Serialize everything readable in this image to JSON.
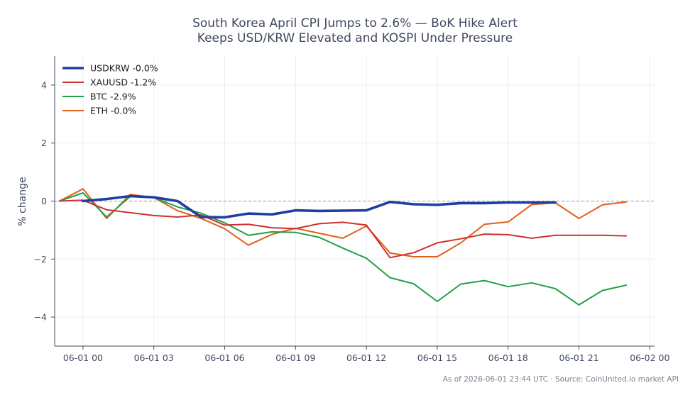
{
  "footer": "As of 2026-06-01 23:44 UTC · Source: CoinUnited.io market API",
  "colors": {
    "USDKRW": "#1f3fa0",
    "XAUUSD": "#d03030",
    "BTC": "#22a04a",
    "ETH": "#e0601a",
    "baseline": "#8a9bb0",
    "grid": "#e9edf2",
    "axis": "#3f4a5e"
  },
  "chart_data": {
    "type": "line",
    "title": [
      "South Korea April CPI Jumps to 2.6% — BoK Hike Alert",
      "Keeps USD/KRW Elevated and KOSPI Under Pressure"
    ],
    "xlabel": "",
    "ylabel": "% change",
    "x_unit": "hours since 06-01 00:00",
    "xlim": [
      -1.2,
      24.2
    ],
    "ylim": [
      -5,
      5
    ],
    "xticks": [
      {
        "x": 0,
        "label": "06-01 00"
      },
      {
        "x": 3,
        "label": "06-01 03"
      },
      {
        "x": 6,
        "label": "06-01 06"
      },
      {
        "x": 9,
        "label": "06-01 09"
      },
      {
        "x": 12,
        "label": "06-01 12"
      },
      {
        "x": 15,
        "label": "06-01 15"
      },
      {
        "x": 18,
        "label": "06-01 18"
      },
      {
        "x": 21,
        "label": "06-01 21"
      },
      {
        "x": 24,
        "label": "06-02 00"
      }
    ],
    "yticks": [
      {
        "y": 4,
        "label": "4"
      },
      {
        "y": 2,
        "label": "2"
      },
      {
        "y": 0,
        "label": "0"
      },
      {
        "y": -2,
        "label": "−2"
      },
      {
        "y": -4,
        "label": "−4"
      }
    ],
    "grid": true,
    "baseline": 0,
    "legend_position": "top-left",
    "series": [
      {
        "key": "USDKRW",
        "name": "USDKRW -0.0%",
        "x": [
          0,
          1,
          2,
          3,
          4,
          5,
          6,
          7,
          8,
          9,
          10,
          11,
          12,
          13,
          14,
          15,
          16,
          17,
          18,
          19,
          20
        ],
        "values": [
          0.0,
          0.07,
          0.17,
          0.13,
          0.0,
          -0.55,
          -0.56,
          -0.43,
          -0.46,
          -0.32,
          -0.34,
          -0.33,
          -0.32,
          -0.03,
          -0.11,
          -0.13,
          -0.07,
          -0.07,
          -0.05,
          -0.05,
          -0.05
        ]
      },
      {
        "key": "XAUUSD",
        "name": "XAUUSD -1.2%",
        "x": [
          -1,
          0,
          1,
          2,
          3,
          4,
          5,
          6,
          7,
          8,
          9,
          10,
          11,
          12,
          13,
          14,
          15,
          16,
          17,
          18,
          19,
          20,
          21,
          22,
          23
        ],
        "values": [
          0.0,
          0.03,
          -0.3,
          -0.4,
          -0.5,
          -0.55,
          -0.48,
          -0.83,
          -0.8,
          -0.92,
          -0.95,
          -0.78,
          -0.73,
          -0.83,
          -1.95,
          -1.78,
          -1.44,
          -1.3,
          -1.14,
          -1.16,
          -1.28,
          -1.18,
          -1.18,
          -1.18,
          -1.2
        ]
      },
      {
        "key": "BTC",
        "name": "BTC -2.9%",
        "x": [
          -1,
          0,
          1,
          2,
          3,
          4,
          5,
          6,
          7,
          8,
          9,
          10,
          11,
          12,
          13,
          14,
          15,
          16,
          17,
          18,
          19,
          20,
          21,
          22,
          23
        ],
        "values": [
          0.0,
          0.28,
          -0.55,
          0.16,
          0.12,
          -0.2,
          -0.42,
          -0.75,
          -1.18,
          -1.06,
          -1.08,
          -1.25,
          -1.62,
          -1.97,
          -2.64,
          -2.85,
          -3.46,
          -2.86,
          -2.74,
          -2.95,
          -2.82,
          -3.02,
          -3.58,
          -3.08,
          -2.9
        ]
      },
      {
        "key": "ETH",
        "name": "ETH -0.0%",
        "x": [
          -1,
          0,
          1,
          2,
          3,
          4,
          5,
          6,
          7,
          8,
          9,
          10,
          11,
          12,
          13,
          14,
          15,
          16,
          17,
          18,
          19,
          20,
          21,
          22,
          23
        ],
        "values": [
          0.0,
          0.42,
          -0.6,
          0.23,
          0.12,
          -0.33,
          -0.6,
          -0.95,
          -1.52,
          -1.15,
          -0.94,
          -1.11,
          -1.28,
          -0.86,
          -1.79,
          -1.92,
          -1.92,
          -1.44,
          -0.8,
          -0.72,
          -0.12,
          -0.06,
          -0.6,
          -0.13,
          -0.03
        ]
      }
    ]
  }
}
